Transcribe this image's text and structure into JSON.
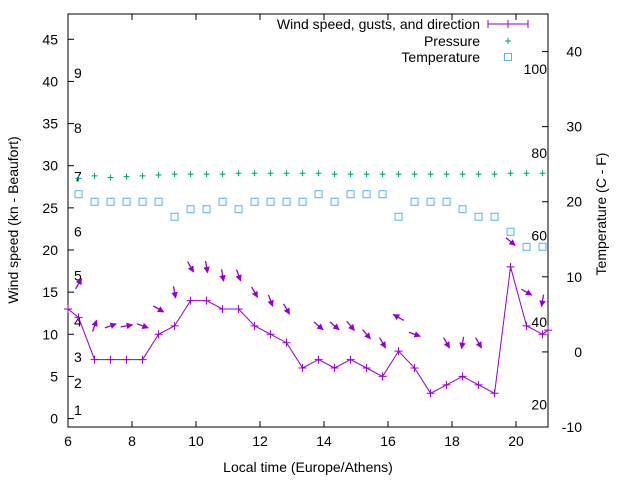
{
  "chart_data": {
    "type": "line",
    "title": "",
    "xlabel": "Local time (Europe/Athens)",
    "ylabel": "Wind speed (kn - Beaufort)",
    "y2label": "Temperature (C - F)",
    "xlim": [
      6,
      21
    ],
    "ylim": [
      -1,
      48
    ],
    "y2lim": [
      -10,
      45
    ],
    "x_ticks": [
      6,
      8,
      10,
      12,
      14,
      16,
      18,
      20
    ],
    "y_ticks": [
      0,
      5,
      10,
      15,
      20,
      25,
      30,
      35,
      40,
      45
    ],
    "y2_ticks": [
      -10,
      0,
      10,
      20,
      30,
      40
    ],
    "beaufort_labels": [
      {
        "label": "1",
        "y": 1
      },
      {
        "label": "2",
        "y": 4.2
      },
      {
        "label": "3",
        "y": 7.3
      },
      {
        "label": "4",
        "y": 11.5
      },
      {
        "label": "5",
        "y": 17
      },
      {
        "label": "6",
        "y": 22.2
      },
      {
        "label": "7",
        "y": 28.7
      },
      {
        "label": "8",
        "y": 34.5
      },
      {
        "label": "9",
        "y": 41
      }
    ],
    "fahrenheit_labels": [
      {
        "label": "20",
        "y2": -7
      },
      {
        "label": "40",
        "y2": 4
      },
      {
        "label": "60",
        "y2": 15.5
      },
      {
        "label": "80",
        "y2": 26.5
      },
      {
        "label": "100",
        "y2": 37.7
      }
    ],
    "legend": [
      "Wind speed, gusts, and direction",
      "Pressure",
      "Temperature"
    ],
    "series": [
      {
        "name": "Wind speed, gusts, and direction",
        "color": "#9400d3",
        "x": [
          6.0,
          6.33,
          6.83,
          7.33,
          7.83,
          8.33,
          8.83,
          9.33,
          9.83,
          10.33,
          10.83,
          11.33,
          11.83,
          12.33,
          12.83,
          13.33,
          13.83,
          14.33,
          14.83,
          15.33,
          15.83,
          16.33,
          16.83,
          17.33,
          17.83,
          18.33,
          18.83,
          19.33,
          19.83,
          20.33,
          20.83,
          21.0
        ],
        "y": [
          13,
          12,
          7,
          7,
          7,
          7,
          10,
          11,
          14,
          14,
          13,
          13,
          11,
          10,
          9,
          6,
          7,
          6,
          7,
          6,
          5,
          8,
          6,
          3,
          4,
          5,
          4,
          3,
          18,
          11,
          10,
          10.5
        ]
      },
      {
        "name": "Pressure",
        "color": "#009e73",
        "x": [
          6.33,
          6.83,
          7.33,
          7.83,
          8.33,
          8.83,
          9.33,
          9.83,
          10.33,
          10.83,
          11.33,
          11.83,
          12.33,
          12.83,
          13.33,
          13.83,
          14.33,
          14.83,
          15.33,
          15.83,
          16.33,
          16.83,
          17.33,
          17.83,
          18.33,
          18.83,
          19.33,
          19.83,
          20.33,
          20.83
        ],
        "y": [
          28.5,
          28.8,
          28.6,
          28.7,
          28.8,
          28.9,
          29.0,
          29.0,
          29.0,
          29.0,
          29.1,
          29.1,
          29.1,
          29.1,
          29.1,
          29.1,
          29.0,
          29.0,
          29.0,
          29.0,
          29.0,
          29.0,
          29.0,
          29.0,
          29.0,
          29.0,
          29.0,
          29.1,
          29.1,
          29.1
        ]
      },
      {
        "name": "Temperature",
        "color": "#56b4e9",
        "axis": "y2",
        "x": [
          6.33,
          6.83,
          7.33,
          7.83,
          8.33,
          8.83,
          9.33,
          9.83,
          10.33,
          10.83,
          11.33,
          11.83,
          12.33,
          12.83,
          13.33,
          13.83,
          14.33,
          14.83,
          15.33,
          15.83,
          16.33,
          16.83,
          17.33,
          17.83,
          18.33,
          18.83,
          19.33,
          19.83,
          20.33,
          20.83
        ],
        "y": [
          21,
          20,
          20,
          20,
          20,
          20,
          18,
          19,
          19,
          20,
          19,
          20,
          20,
          20,
          20,
          21,
          20,
          21,
          21,
          21,
          18,
          20,
          20,
          20,
          19,
          18,
          18,
          16,
          14,
          14
        ]
      }
    ],
    "gust_arrows": {
      "x": [
        6.33,
        6.83,
        7.33,
        7.83,
        8.33,
        8.83,
        9.33,
        9.83,
        10.33,
        10.83,
        11.33,
        11.83,
        12.33,
        12.83,
        13.83,
        14.33,
        14.83,
        15.33,
        15.83,
        16.33,
        16.83,
        17.83,
        18.33,
        18.83,
        19.83,
        20.33,
        20.83
      ],
      "y": [
        16,
        11,
        11,
        11,
        11,
        13,
        15,
        18,
        18,
        17,
        17,
        15,
        14,
        13,
        11,
        11,
        11,
        10,
        9,
        12,
        10,
        9,
        9,
        9,
        21,
        15,
        14
      ],
      "direction_deg": [
        210,
        200,
        250,
        260,
        290,
        300,
        350,
        330,
        350,
        350,
        340,
        330,
        340,
        330,
        310,
        310,
        320,
        320,
        330,
        120,
        290,
        330,
        10,
        330,
        310,
        300,
        10
      ]
    }
  }
}
